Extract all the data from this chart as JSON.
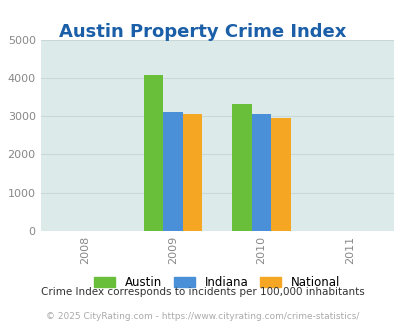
{
  "title": "Austin Property Crime Index",
  "years": [
    2009,
    2010
  ],
  "x_ticks": [
    2008,
    2009,
    2010,
    2011
  ],
  "series": {
    "Austin": [
      4075,
      3330
    ],
    "Indiana": [
      3110,
      3060
    ],
    "National": [
      3045,
      2940
    ]
  },
  "colors": {
    "Austin": "#6abf3a",
    "Indiana": "#4a90d9",
    "National": "#f5a623"
  },
  "ylim": [
    0,
    5000
  ],
  "yticks": [
    0,
    1000,
    2000,
    3000,
    4000,
    5000
  ],
  "bar_width": 0.22,
  "background_color": "#ddeaea",
  "title_color": "#1a5fa8",
  "title_fontsize": 13,
  "legend_labels": [
    "Austin",
    "Indiana",
    "National"
  ],
  "footnote1": "Crime Index corresponds to incidents per 100,000 inhabitants",
  "footnote2": "© 2025 CityRating.com - https://www.cityrating.com/crime-statistics/",
  "footnote1_color": "#333333",
  "footnote2_color": "#aaaaaa",
  "tick_label_color": "#888888",
  "grid_color": "#c8d8d8",
  "xlim": [
    2007.5,
    2011.5
  ]
}
